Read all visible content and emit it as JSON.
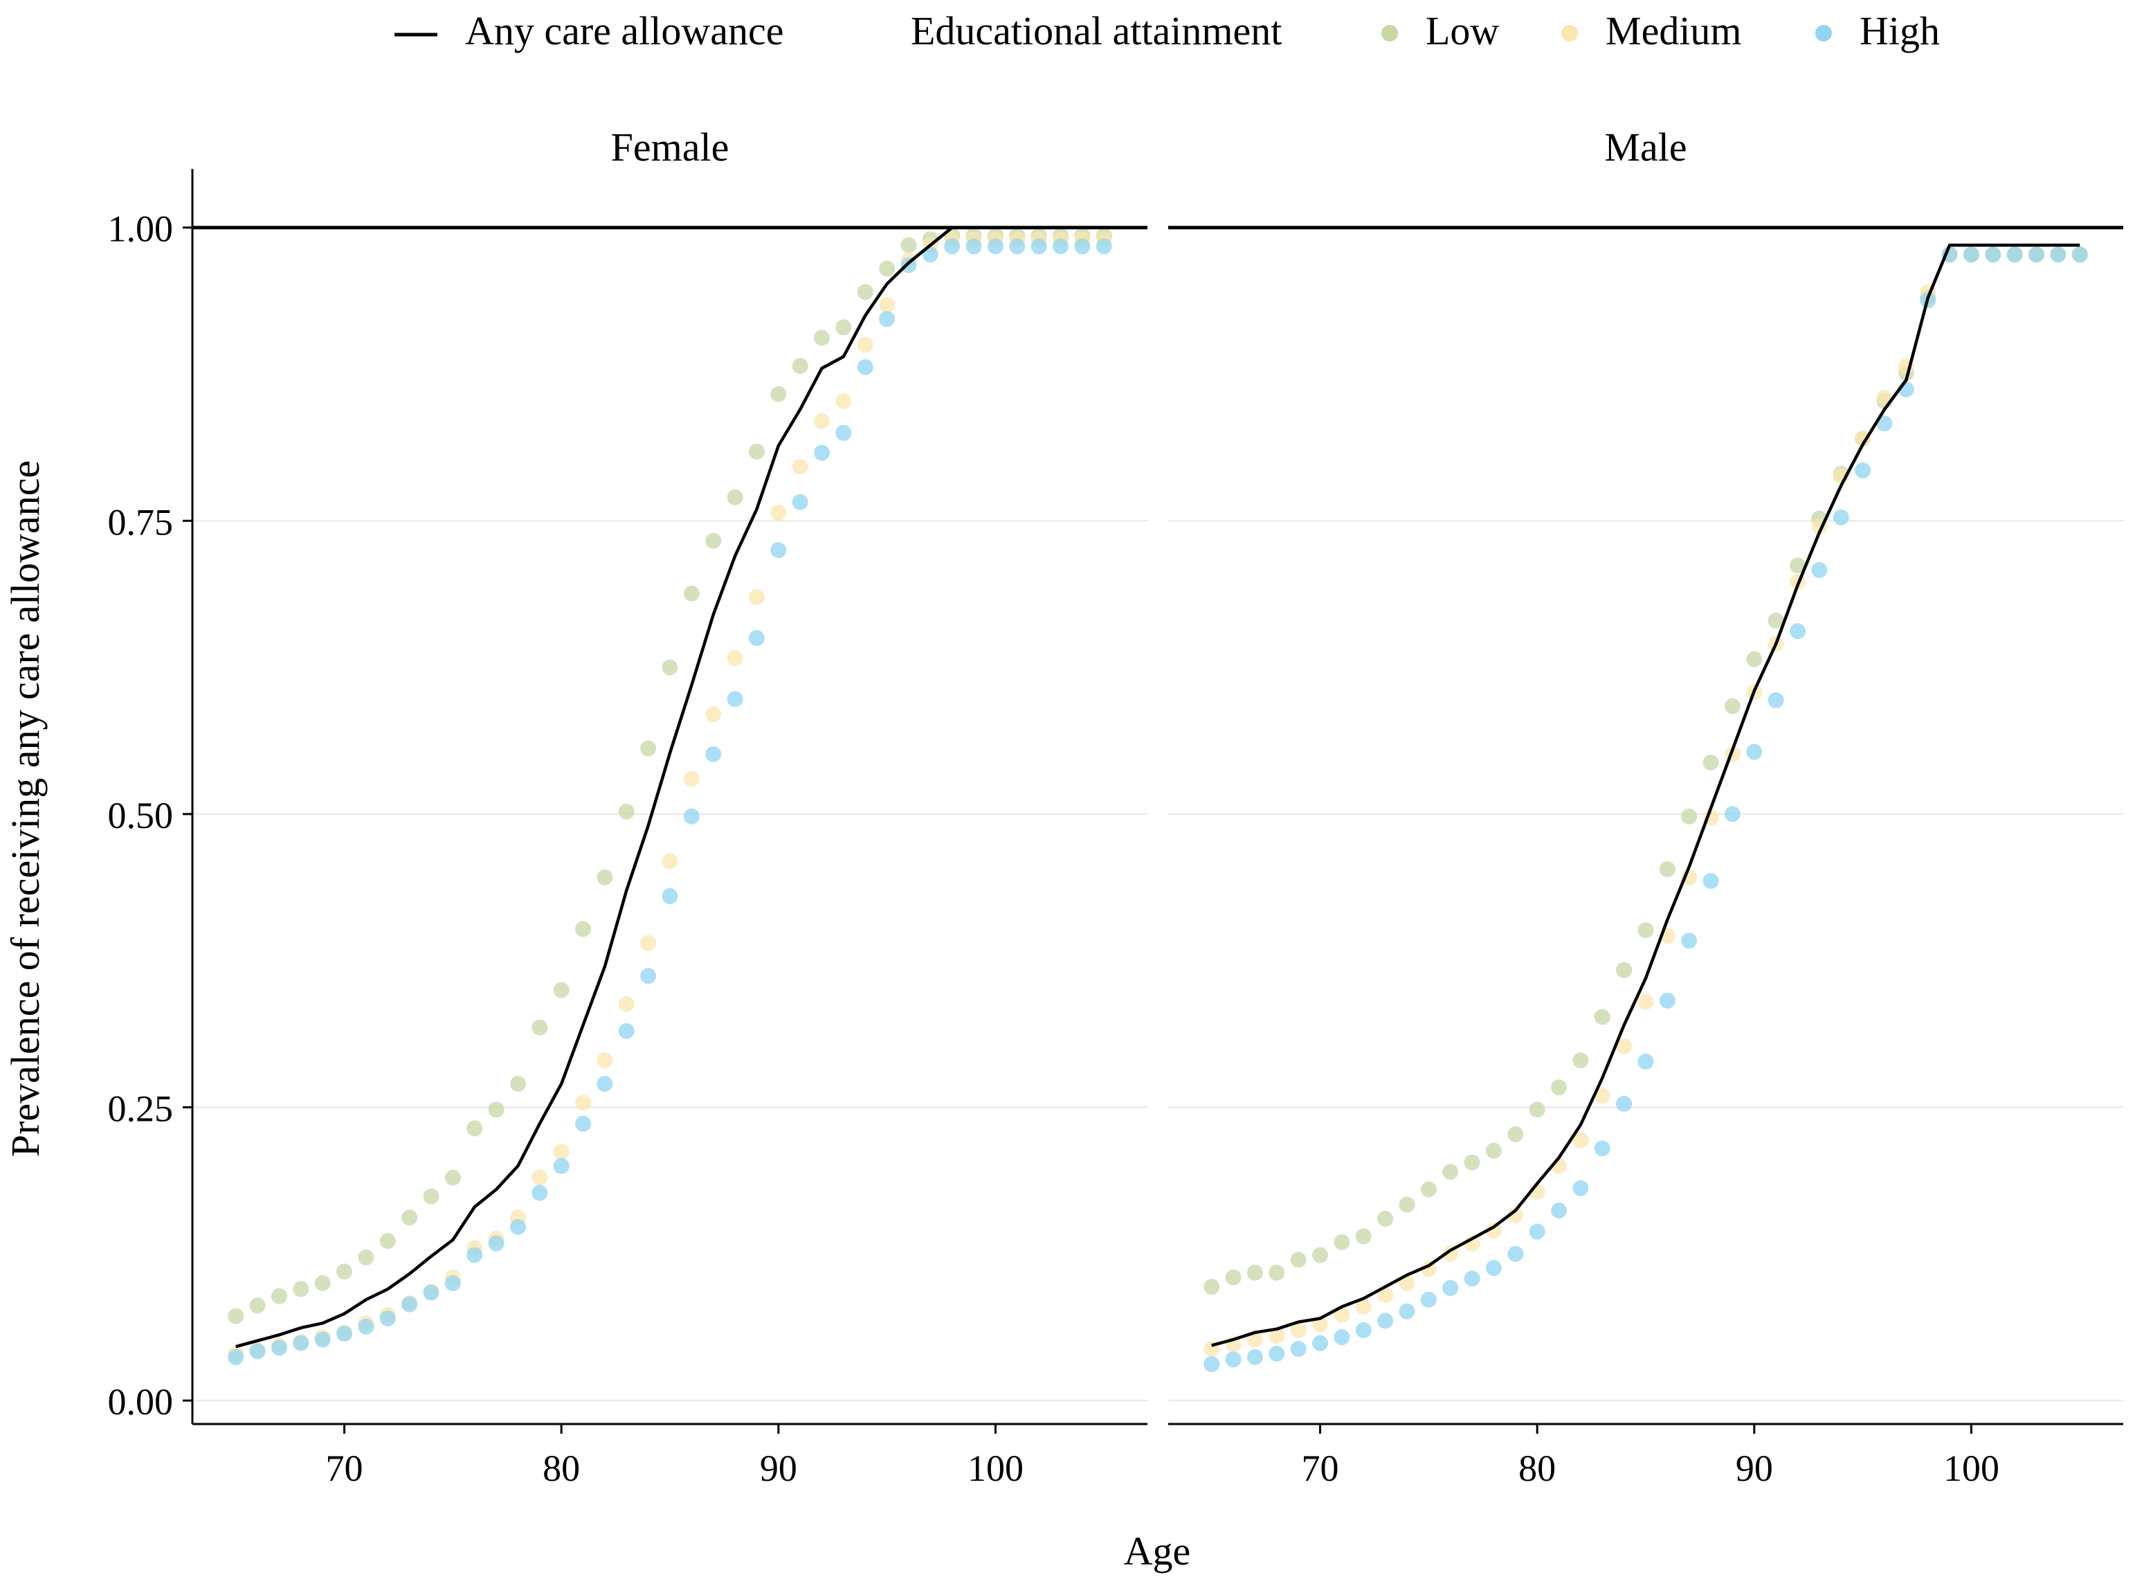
{
  "chart_data": {
    "type": "scatter",
    "xlabel": "Age",
    "ylabel": "Prevalence of receiving any care allowance",
    "xlim": [
      63,
      107
    ],
    "ylim": [
      -0.02,
      1.05
    ],
    "x_ticks": [
      70,
      80,
      90,
      100
    ],
    "y_ticks": [
      0.0,
      0.25,
      0.5,
      0.75,
      1.0
    ],
    "y_tick_labels": [
      "0.00",
      "0.25",
      "0.50",
      "0.75",
      "1.00"
    ],
    "grid": "horizontal major lines",
    "reference_line_y": 1.0,
    "legend": {
      "position": "top",
      "line_label": "Any care allowance",
      "title": "Educational attainment",
      "items": [
        "Low",
        "Medium",
        "High"
      ]
    },
    "colors": {
      "Low": "#c7d7a6",
      "Medium": "#fbe6ad",
      "High": "#8fd4f2",
      "line": "#000000",
      "grid": "#ebebeb"
    },
    "panels": [
      {
        "title": "Female",
        "line": {
          "x": [
            65,
            66,
            67,
            68,
            69,
            70,
            71,
            72,
            73,
            74,
            75,
            76,
            77,
            78,
            79,
            80,
            81,
            82,
            83,
            84,
            85,
            86,
            87,
            88,
            89,
            90,
            91,
            92,
            93,
            94,
            95,
            96,
            97,
            98,
            99,
            100,
            101,
            102,
            103,
            104,
            105
          ],
          "y": [
            0.046,
            0.051,
            0.056,
            0.062,
            0.066,
            0.074,
            0.086,
            0.095,
            0.108,
            0.123,
            0.137,
            0.165,
            0.18,
            0.2,
            0.236,
            0.27,
            0.32,
            0.37,
            0.435,
            0.49,
            0.552,
            0.61,
            0.67,
            0.72,
            0.76,
            0.814,
            0.845,
            0.88,
            0.89,
            0.925,
            0.952,
            0.97,
            0.985,
            1.0,
            1.0,
            1.0,
            1.0,
            1.0,
            1.0,
            1.0,
            1.0
          ]
        },
        "series": [
          {
            "name": "Low",
            "x": [
              65,
              66,
              67,
              68,
              69,
              70,
              71,
              72,
              73,
              74,
              75,
              76,
              77,
              78,
              79,
              80,
              81,
              82,
              83,
              84,
              85,
              86,
              87,
              88,
              89,
              90,
              91,
              92,
              93,
              94,
              95,
              96,
              97,
              98,
              99,
              100,
              101,
              102,
              103,
              104,
              105
            ],
            "y": [
              0.072,
              0.081,
              0.089,
              0.095,
              0.1,
              0.11,
              0.122,
              0.136,
              0.156,
              0.174,
              0.19,
              0.232,
              0.248,
              0.27,
              0.318,
              0.35,
              0.402,
              0.446,
              0.502,
              0.556,
              0.625,
              0.688,
              0.733,
              0.77,
              0.809,
              0.858,
              0.882,
              0.906,
              0.915,
              0.945,
              0.965,
              0.985,
              0.99,
              0.993,
              0.993,
              0.993,
              0.993,
              0.993,
              0.993,
              0.993,
              0.993
            ]
          },
          {
            "name": "Medium",
            "x": [
              65,
              66,
              67,
              68,
              69,
              70,
              71,
              72,
              73,
              74,
              75,
              76,
              77,
              78,
              79,
              80,
              81,
              82,
              83,
              84,
              85,
              86,
              87,
              88,
              89,
              90,
              91,
              92,
              93,
              94,
              95,
              96,
              97,
              98,
              99,
              100,
              101,
              102,
              103,
              104,
              105
            ],
            "y": [
              0.04,
              0.043,
              0.047,
              0.05,
              0.054,
              0.058,
              0.066,
              0.073,
              0.083,
              0.093,
              0.105,
              0.13,
              0.138,
              0.156,
              0.19,
              0.212,
              0.254,
              0.29,
              0.338,
              0.39,
              0.46,
              0.53,
              0.585,
              0.633,
              0.685,
              0.757,
              0.796,
              0.835,
              0.852,
              0.9,
              0.934,
              0.972,
              0.985,
              0.99,
              0.99,
              0.99,
              0.99,
              0.99,
              0.99,
              0.99,
              0.99
            ]
          },
          {
            "name": "High",
            "x": [
              65,
              66,
              67,
              68,
              69,
              70,
              71,
              72,
              73,
              74,
              75,
              76,
              77,
              78,
              79,
              80,
              81,
              82,
              83,
              84,
              85,
              86,
              87,
              88,
              89,
              90,
              91,
              92,
              93,
              94,
              95,
              96,
              97,
              98,
              99,
              100,
              101,
              102,
              103,
              104,
              105
            ],
            "y": [
              0.037,
              0.042,
              0.045,
              0.049,
              0.052,
              0.057,
              0.063,
              0.07,
              0.082,
              0.092,
              0.1,
              0.124,
              0.134,
              0.148,
              0.177,
              0.2,
              0.236,
              0.27,
              0.315,
              0.362,
              0.43,
              0.498,
              0.551,
              0.598,
              0.65,
              0.725,
              0.766,
              0.808,
              0.825,
              0.881,
              0.922,
              0.968,
              0.977,
              0.984,
              0.984,
              0.984,
              0.984,
              0.984,
              0.984,
              0.984,
              0.984
            ]
          }
        ]
      },
      {
        "title": "Male",
        "line": {
          "x": [
            65,
            66,
            67,
            68,
            69,
            70,
            71,
            72,
            73,
            74,
            75,
            76,
            77,
            78,
            79,
            80,
            81,
            82,
            83,
            84,
            85,
            86,
            87,
            88,
            89,
            90,
            91,
            92,
            93,
            94,
            95,
            96,
            97,
            98,
            99,
            100,
            101,
            102,
            103,
            104,
            105
          ],
          "y": [
            0.047,
            0.052,
            0.058,
            0.061,
            0.067,
            0.07,
            0.08,
            0.087,
            0.097,
            0.107,
            0.115,
            0.128,
            0.138,
            0.148,
            0.162,
            0.185,
            0.207,
            0.235,
            0.275,
            0.32,
            0.36,
            0.41,
            0.455,
            0.505,
            0.555,
            0.605,
            0.645,
            0.695,
            0.74,
            0.78,
            0.815,
            0.845,
            0.87,
            0.94,
            0.985,
            0.985,
            0.985,
            0.985,
            0.985,
            0.985,
            0.985
          ]
        },
        "series": [
          {
            "name": "Low",
            "x": [
              65,
              66,
              67,
              68,
              69,
              70,
              71,
              72,
              73,
              74,
              75,
              76,
              77,
              78,
              79,
              80,
              81,
              82,
              83,
              84,
              85,
              86,
              87,
              88,
              89,
              90,
              91,
              92,
              93,
              94,
              95,
              96,
              97,
              98,
              99,
              100,
              101,
              102,
              103,
              104,
              105
            ],
            "y": [
              0.097,
              0.105,
              0.109,
              0.109,
              0.12,
              0.124,
              0.135,
              0.14,
              0.155,
              0.167,
              0.18,
              0.195,
              0.203,
              0.213,
              0.227,
              0.248,
              0.267,
              0.29,
              0.327,
              0.367,
              0.401,
              0.453,
              0.498,
              0.544,
              0.592,
              0.632,
              0.665,
              0.712,
              0.752,
              0.79,
              0.82,
              0.852,
              0.876,
              0.941,
              0.977,
              0.977,
              0.977,
              0.977,
              0.977,
              0.977,
              0.977
            ]
          },
          {
            "name": "Medium",
            "x": [
              65,
              66,
              67,
              68,
              69,
              70,
              71,
              72,
              73,
              74,
              75,
              76,
              77,
              78,
              79,
              80,
              81,
              82,
              83,
              84,
              85,
              86,
              87,
              88,
              89,
              90,
              91,
              92,
              93,
              94,
              95,
              96,
              97,
              98,
              99,
              100,
              101,
              102,
              103,
              104,
              105
            ],
            "y": [
              0.044,
              0.048,
              0.052,
              0.055,
              0.06,
              0.065,
              0.073,
              0.08,
              0.09,
              0.1,
              0.112,
              0.125,
              0.134,
              0.145,
              0.158,
              0.178,
              0.2,
              0.222,
              0.26,
              0.302,
              0.34,
              0.396,
              0.446,
              0.497,
              0.551,
              0.604,
              0.645,
              0.698,
              0.745,
              0.788,
              0.82,
              0.855,
              0.882,
              0.945,
              0.977,
              0.977,
              0.977,
              0.977,
              0.977,
              0.977,
              0.977
            ]
          },
          {
            "name": "High",
            "x": [
              65,
              66,
              67,
              68,
              69,
              70,
              71,
              72,
              73,
              74,
              75,
              76,
              77,
              78,
              79,
              80,
              81,
              82,
              83,
              84,
              85,
              86,
              87,
              88,
              89,
              90,
              91,
              92,
              93,
              94,
              95,
              96,
              97,
              98,
              99,
              100,
              101,
              102,
              103,
              104,
              105
            ],
            "y": [
              0.031,
              0.035,
              0.037,
              0.04,
              0.044,
              0.049,
              0.054,
              0.06,
              0.068,
              0.076,
              0.086,
              0.096,
              0.104,
              0.113,
              0.125,
              0.144,
              0.162,
              0.181,
              0.215,
              0.253,
              0.289,
              0.341,
              0.392,
              0.443,
              0.5,
              0.553,
              0.597,
              0.656,
              0.708,
              0.753,
              0.793,
              0.833,
              0.862,
              0.938,
              0.977,
              0.977,
              0.977,
              0.977,
              0.977,
              0.977,
              0.977
            ]
          }
        ]
      }
    ]
  }
}
